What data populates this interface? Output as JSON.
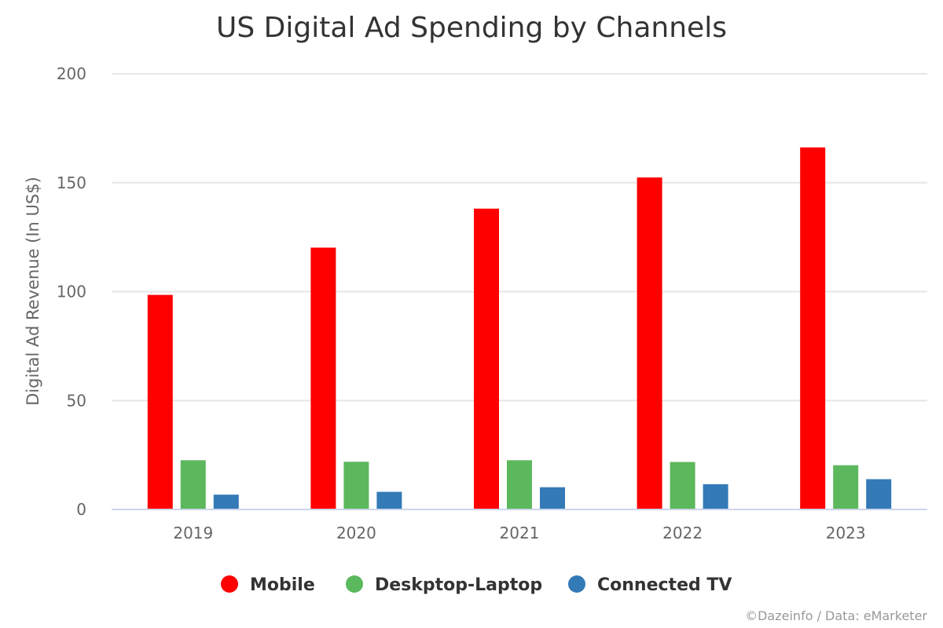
{
  "chart_data": {
    "type": "bar",
    "title": "US Digital Ad Spending by Channels",
    "xlabel": "",
    "ylabel": "Digital Ad Revenue (In US$)",
    "ylim": [
      0,
      200
    ],
    "yticks": [
      0,
      50,
      100,
      150,
      200
    ],
    "grid": true,
    "legend_position": "bottom-center",
    "categories": [
      "2019",
      "2020",
      "2021",
      "2022",
      "2023"
    ],
    "series": [
      {
        "name": "Mobile",
        "color": "#ff0000",
        "values": [
          98.5,
          120.2,
          138.1,
          152.4,
          166.2
        ]
      },
      {
        "name": "Deskptop-Laptop",
        "color": "#5cb85c",
        "values": [
          22.6,
          21.9,
          22.6,
          21.8,
          20.3
        ]
      },
      {
        "name": "Connected TV",
        "color": "#337ab7",
        "values": [
          6.8,
          8.1,
          10.2,
          11.6,
          13.9
        ]
      }
    ]
  },
  "credits": "©Dazeinfo / Data: eMarketer"
}
